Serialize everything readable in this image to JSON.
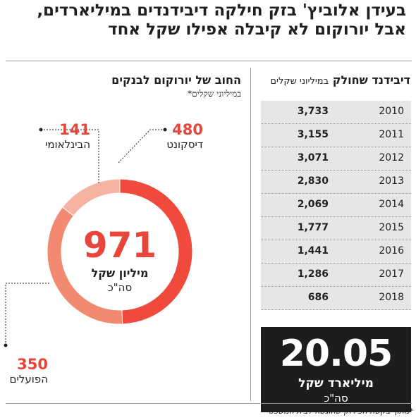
{
  "headline": {
    "line1": "בעידן אלוביץ' בזק חילקה דיבידנדים במיליארדים,",
    "line2": "אבל יורוקום לא קיבלה אפילו שקל אחד"
  },
  "right_panel": {
    "title_bold": "דיבידנד שחולק",
    "title_light": "במיליוני שקלים",
    "total_value": "20.05",
    "total_unit": "מיליארד שקל",
    "total_label": "סה\"כ"
  },
  "left_panel": {
    "title": "החוב של יורוקום לבנקים",
    "subtitle": "במיליוני שקלים*",
    "center_value": "971",
    "center_unit": "מיליון שקל",
    "center_label": "סה\"כ"
  },
  "footnote": "*מתוך בקשת הפירוק שהוגשה לבית המשפט",
  "colors": {
    "accent": "#e8463a",
    "slice1": "#ef4a3c",
    "slice2": "#f28a72",
    "slice3": "#f6b3a2",
    "dark": "#1d1d1b",
    "table_bg": "#e6e6e6"
  },
  "chart_data": [
    {
      "type": "table",
      "title": "דיבידנד שחולק",
      "subtitle": "במיליוני שקלים",
      "columns": [
        "year",
        "dividend"
      ],
      "rows": [
        [
          "2010",
          "3,733"
        ],
        [
          "2011",
          "3,155"
        ],
        [
          "2012",
          "3,071"
        ],
        [
          "2013",
          "2,830"
        ],
        [
          "2014",
          "2,069"
        ],
        [
          "2015",
          "1,777"
        ],
        [
          "2016",
          "1,441"
        ],
        [
          "2017",
          "1,286"
        ],
        [
          "2018",
          "686"
        ]
      ],
      "total": "20.05"
    },
    {
      "type": "pie",
      "title": "החוב של יורוקום לבנקים",
      "subtitle": "במיליוני שקלים*",
      "slices": [
        {
          "label": "דיסקונט",
          "value": 480,
          "display": "480"
        },
        {
          "label": "הפועלים",
          "value": 350,
          "display": "350"
        },
        {
          "label": "הבינלאומי",
          "value": 141,
          "display": "141"
        }
      ],
      "total": "971"
    }
  ]
}
